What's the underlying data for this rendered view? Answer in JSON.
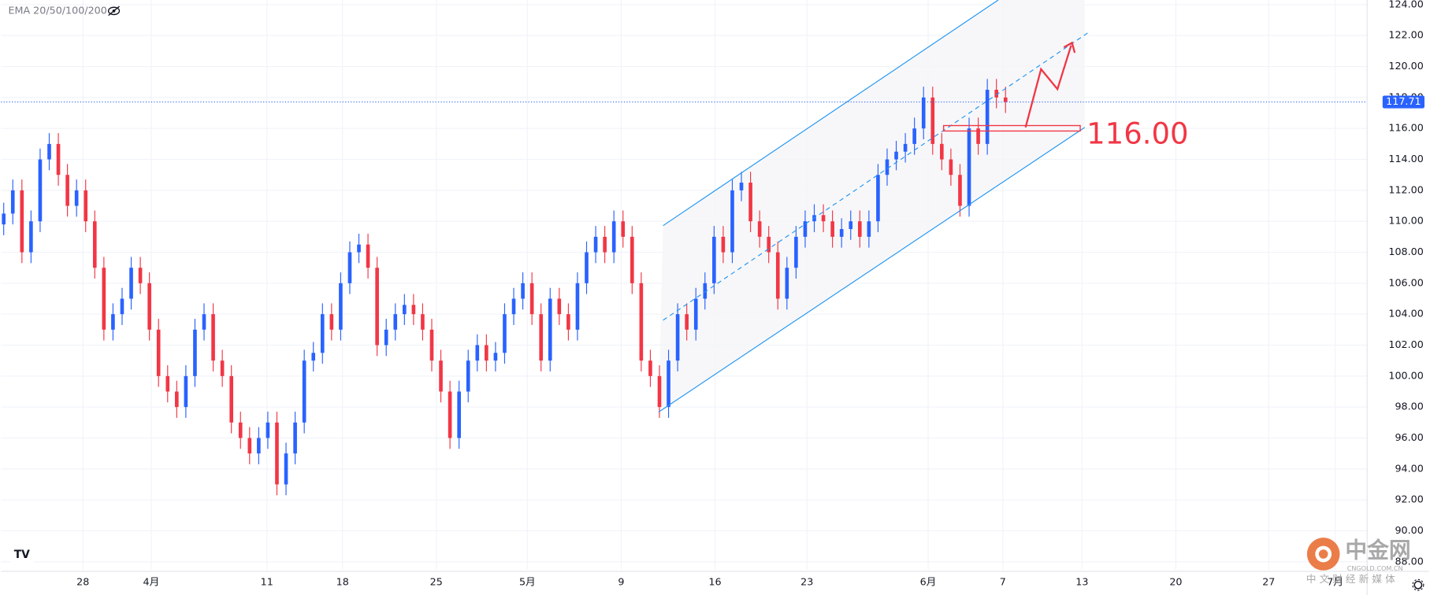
{
  "chart_data": {
    "type": "candlestick",
    "indicator_label": "EMA 20/50/100/200",
    "annotation": "116.00",
    "up_color": "#2962ff",
    "down_color": "#f23645",
    "grid": true,
    "ylim": [
      87.5,
      124.3
    ],
    "yticks": [
      {
        "value": 88,
        "label": "88.00"
      },
      {
        "value": 90,
        "label": "90.00"
      },
      {
        "value": 92,
        "label": "92.00"
      },
      {
        "value": 94,
        "label": "94.00"
      },
      {
        "value": 96,
        "label": "96.00"
      },
      {
        "value": 98,
        "label": "98.00"
      },
      {
        "value": 100,
        "label": "100.00"
      },
      {
        "value": 102,
        "label": "102.00"
      },
      {
        "value": 104,
        "label": "104.00"
      },
      {
        "value": 106,
        "label": "106.00"
      },
      {
        "value": 108,
        "label": "108.00"
      },
      {
        "value": 110,
        "label": "110.00"
      },
      {
        "value": 112,
        "label": "112.00"
      },
      {
        "value": 114,
        "label": "114.00"
      },
      {
        "value": 116,
        "label": "116.00"
      },
      {
        "value": 118,
        "label": "118.00"
      },
      {
        "value": 120,
        "label": "120.00"
      },
      {
        "value": 122,
        "label": "122.00"
      },
      {
        "value": 124,
        "label": "124.00"
      }
    ],
    "xlim": [
      0,
      150
    ],
    "xticks": [
      {
        "value": 9,
        "label": "28"
      },
      {
        "value": 16.5,
        "label": "4月"
      },
      {
        "value": 29.2,
        "label": "11"
      },
      {
        "value": 37.5,
        "label": "18"
      },
      {
        "value": 47.8,
        "label": "25"
      },
      {
        "value": 57.8,
        "label": "5月"
      },
      {
        "value": 68.1,
        "label": "9"
      },
      {
        "value": 78.4,
        "label": "16"
      },
      {
        "value": 88.5,
        "label": "23"
      },
      {
        "value": 101.8,
        "label": "6月"
      },
      {
        "value": 110,
        "label": "7"
      },
      {
        "value": 118.7,
        "label": "13"
      },
      {
        "value": 129,
        "label": "20"
      },
      {
        "value": 139.2,
        "label": "27"
      },
      {
        "value": 146.5,
        "label": "7月"
      }
    ],
    "open": [
      109.8,
      110.5,
      112,
      108,
      110,
      114,
      115,
      113,
      111,
      112,
      110,
      107,
      103,
      104,
      105,
      107,
      106,
      103,
      100,
      99,
      98,
      100,
      103,
      104,
      101,
      100,
      97,
      96,
      95,
      96,
      97,
      93,
      95,
      97,
      101,
      101.5,
      104,
      103,
      106,
      108,
      108.5,
      107,
      102,
      103,
      104,
      104.6,
      104,
      103,
      101,
      99,
      96,
      99,
      101,
      102,
      101,
      101.5,
      104,
      105,
      106,
      104,
      101,
      105,
      104,
      103,
      106,
      108,
      109,
      108,
      110,
      109,
      106,
      101,
      100,
      98,
      101,
      104,
      103,
      105,
      106,
      109,
      108,
      112,
      112.5,
      110,
      109,
      108,
      105,
      107,
      109,
      110,
      110.4,
      110,
      109,
      109.5,
      110,
      109,
      110,
      113,
      114,
      114.5,
      115,
      116,
      118,
      115,
      114,
      113,
      111,
      116,
      115,
      118.5,
      118
    ],
    "high": [
      111.2,
      112.7,
      112.7,
      110.7,
      114.7,
      115.7,
      115.7,
      113.7,
      112.7,
      112.7,
      110.7,
      107.7,
      104.7,
      105.7,
      107.7,
      107.7,
      106.7,
      103.7,
      100.7,
      99.7,
      100.7,
      103.7,
      104.7,
      104.7,
      101.7,
      100.7,
      97.7,
      96.7,
      96.7,
      97.7,
      97.7,
      95.7,
      97.7,
      101.7,
      102.2,
      104.7,
      104.7,
      106.7,
      108.7,
      109.2,
      109.2,
      107.7,
      103.7,
      104.7,
      105.3,
      105.3,
      104.7,
      103.7,
      101.7,
      99.7,
      99.7,
      101.7,
      102.7,
      102.7,
      102.2,
      104.7,
      105.7,
      106.7,
      106.7,
      104.7,
      105.7,
      105.7,
      104.7,
      106.7,
      108.7,
      109.7,
      109.7,
      110.7,
      110.7,
      109.7,
      106.7,
      101.7,
      100.7,
      101.7,
      104.7,
      104.7,
      105.7,
      106.7,
      109.7,
      109.7,
      112.7,
      113.2,
      113.2,
      110.7,
      109.7,
      108.7,
      107.7,
      109.7,
      110.7,
      111.1,
      111.1,
      110.7,
      110.2,
      110.7,
      110.7,
      110.7,
      113.7,
      114.7,
      115.2,
      115.7,
      116.7,
      118.7,
      118.7,
      115.7,
      114.7,
      113.7,
      116.7,
      116.7,
      119.2,
      119.2,
      118.7
    ],
    "low": [
      109.1,
      109.8,
      107.3,
      107.3,
      109.3,
      113.3,
      112.3,
      110.3,
      110.3,
      109.3,
      106.3,
      102.3,
      102.3,
      103.3,
      104.3,
      105.3,
      102.3,
      99.3,
      98.3,
      97.3,
      97.3,
      99.3,
      102.3,
      100.3,
      99.3,
      96.3,
      95.3,
      94.3,
      94.3,
      95.3,
      92.3,
      92.3,
      94.3,
      96.3,
      100.3,
      100.8,
      102.3,
      102.3,
      105.3,
      107.3,
      106.3,
      101.3,
      101.3,
      102.3,
      103.3,
      103.3,
      102.3,
      100.3,
      98.3,
      95.3,
      95.3,
      98.3,
      100.3,
      100.3,
      100.3,
      100.8,
      103.3,
      104.3,
      103.3,
      100.3,
      100.3,
      103.3,
      102.3,
      102.3,
      105.3,
      107.3,
      107.3,
      107.3,
      108.3,
      105.3,
      100.3,
      99.3,
      97.3,
      97.3,
      100.3,
      102.3,
      102.3,
      104.3,
      105.3,
      107.3,
      107.3,
      111.3,
      109.3,
      108.3,
      107.3,
      104.3,
      104.3,
      106.3,
      108.3,
      109.3,
      109.3,
      108.3,
      108.3,
      108.8,
      108.3,
      108.3,
      109.3,
      112.3,
      113.3,
      113.8,
      114.3,
      115.3,
      114.3,
      113.3,
      112.3,
      110.3,
      110.3,
      114.3,
      114.3,
      117.3,
      117.0
    ],
    "close": [
      110.5,
      112,
      108,
      110,
      114,
      115,
      113,
      111,
      112,
      110,
      107,
      103,
      104,
      105,
      107,
      106,
      103,
      100,
      99,
      98,
      100,
      103,
      104,
      101,
      100,
      97,
      96,
      95,
      96,
      97,
      93,
      95,
      97,
      101,
      101.5,
      104,
      103,
      106,
      108,
      108.5,
      107,
      102,
      103,
      104,
      104.6,
      104,
      103,
      101,
      99,
      96,
      99,
      101,
      102,
      101,
      101.5,
      104,
      105,
      106,
      104,
      101,
      105,
      104,
      103,
      106,
      108,
      109,
      108,
      110,
      109,
      106,
      101,
      100,
      98,
      101,
      104,
      103,
      105,
      106,
      109,
      108,
      112,
      112.5,
      110,
      109,
      108,
      105,
      107,
      109,
      110,
      110.4,
      110,
      109,
      109.5,
      110,
      109,
      110,
      113,
      114,
      114.5,
      115,
      116,
      118,
      115,
      114,
      113,
      111,
      116,
      115,
      118.5,
      118,
      117.71
    ]
  },
  "watermark": {
    "name": "中金网",
    "domain": "CNGOLD.COM.CN",
    "slogan": "中 文 财 经 新 媒 体"
  }
}
